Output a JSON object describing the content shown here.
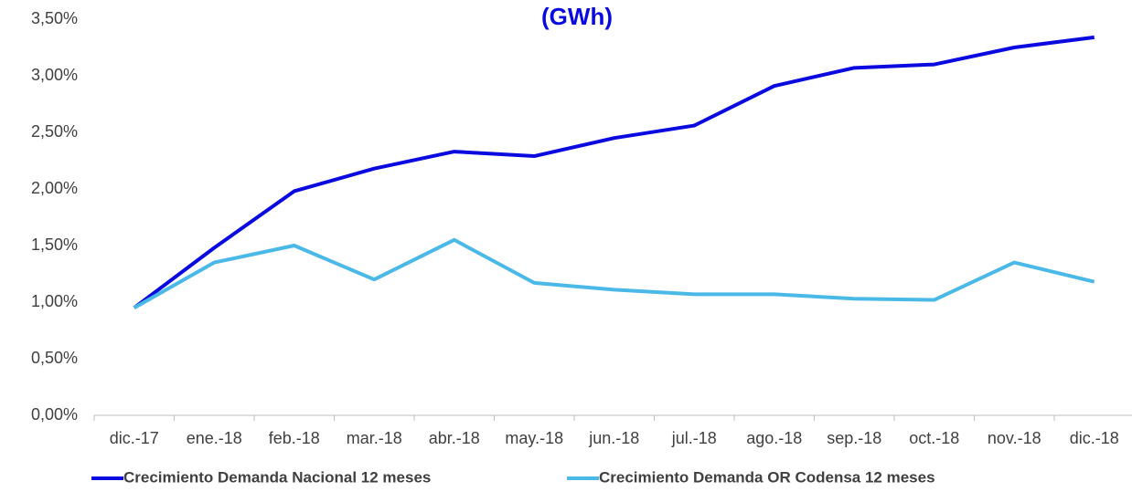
{
  "chart_data": {
    "type": "line",
    "title": "(GWh)",
    "categories": [
      "dic.-17",
      "ene.-18",
      "feb.-18",
      "mar.-18",
      "abr.-18",
      "may.-18",
      "jun.-18",
      "jul.-18",
      "ago.-18",
      "sep.-18",
      "oct.-18",
      "nov.-18",
      "dic.-18"
    ],
    "series": [
      {
        "name": "Crecimiento Demanda Nacional 12 meses",
        "color": "#0a0ae0",
        "values": [
          0.95,
          1.48,
          1.98,
          2.18,
          2.33,
          2.29,
          2.45,
          2.56,
          2.91,
          3.07,
          3.1,
          3.25,
          3.34
        ]
      },
      {
        "name": "Crecimiento Demanda OR Codensa  12 meses",
        "color": "#4bb9e8",
        "values": [
          0.95,
          1.35,
          1.5,
          1.2,
          1.55,
          1.17,
          1.11,
          1.07,
          1.07,
          1.03,
          1.02,
          1.35,
          1.18
        ]
      }
    ],
    "ylim": [
      0,
      3.5
    ],
    "yticks": [
      {
        "value": 0,
        "label": "0,00%"
      },
      {
        "value": 0.5,
        "label": "0,50%"
      },
      {
        "value": 1,
        "label": "1,00%"
      },
      {
        "value": 1.5,
        "label": "1,50%"
      },
      {
        "value": 2,
        "label": "2,00%"
      },
      {
        "value": 2.5,
        "label": "2,50%"
      },
      {
        "value": 3,
        "label": "3,00%"
      },
      {
        "value": 3.5,
        "label": "3,50%"
      }
    ],
    "grid": false,
    "legend": "bottom"
  }
}
